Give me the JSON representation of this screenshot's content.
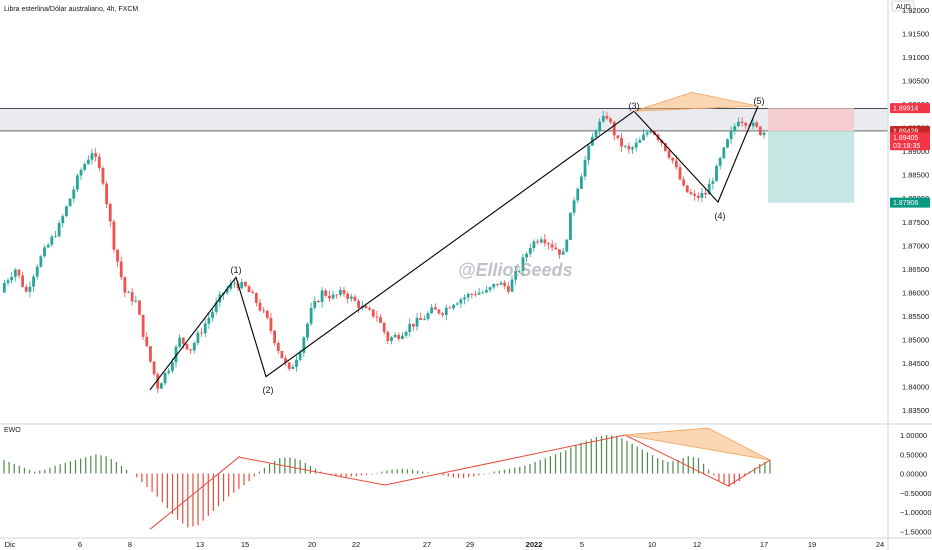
{
  "header": {
    "symbol_title": "Libra esterlina/Dólar australiano, 4h, FXCM",
    "currency": "AUD"
  },
  "indicator": {
    "name": "EWO"
  },
  "watermark": "@ElliotSeeds",
  "colors": {
    "up": "#26a69a",
    "down": "#ef5350",
    "ewo_up": "#4f8a4c",
    "ewo_down": "#e74c3c",
    "wave_line": "#000000",
    "triangle_fill": "#f7b574",
    "tp_zone": "#b2dfdb",
    "sl_zone": "#f6c9cc",
    "range_zone": "#e4e6ea",
    "price_green": "#089981",
    "price_red": "#f23645",
    "price_dark_red": "#c62828"
  },
  "price_tags": {
    "top": "1.89914",
    "middle": "1.89428",
    "current": "1.89405",
    "countdown": "03:18:35",
    "target": "1.87906"
  },
  "wave_labels": [
    "(1)",
    "(2)",
    "(3)",
    "(4)",
    "(5)"
  ],
  "chart_data": [
    {
      "type": "candlestick",
      "title": "Libra esterlina/Dólar australiano, 4h, FXCM",
      "x_tick_labels": [
        "Dic",
        "6",
        "8",
        "13",
        "15",
        "20",
        "22",
        "27",
        "29",
        "2022",
        "5",
        "10",
        "12",
        "17",
        "19",
        "24"
      ],
      "y_tick_labels": [
        "1.92000",
        "1.91500",
        "1.91000",
        "1.90500",
        "1.90000",
        "1.89500",
        "1.89000",
        "1.88500",
        "1.88000",
        "1.87500",
        "1.87000",
        "1.86500",
        "1.86000",
        "1.85500",
        "1.85000",
        "1.84500",
        "1.84000",
        "1.83500"
      ],
      "ylim": [
        1.832,
        1.921
      ],
      "resistance_zone": [
        1.8943,
        1.8991
      ],
      "elliott_wave_points": [
        {
          "label": "start",
          "price": 1.8393
        },
        {
          "label": "(1)",
          "price": 1.8632
        },
        {
          "label": "(2)",
          "price": 1.8421
        },
        {
          "label": "(3)",
          "price": 1.8985
        },
        {
          "label": "(4)",
          "price": 1.8792
        },
        {
          "label": "(5)",
          "price": 1.8996
        }
      ],
      "trade_setup": {
        "stop": 1.89914,
        "entry": 1.89428,
        "target": 1.87906
      },
      "approx_close_path": [
        1.862,
        1.865,
        1.86,
        1.866,
        1.87,
        1.874,
        1.88,
        1.886,
        1.89,
        1.884,
        1.87,
        1.86,
        1.858,
        1.848,
        1.84,
        1.844,
        1.85,
        1.848,
        1.852,
        1.856,
        1.86,
        1.862,
        1.861,
        1.858,
        1.854,
        1.848,
        1.843,
        1.848,
        1.856,
        1.86,
        1.859,
        1.86,
        1.858,
        1.856,
        1.855,
        1.85,
        1.851,
        1.853,
        1.854,
        1.856,
        1.856,
        1.858,
        1.859,
        1.86,
        1.86,
        1.862,
        1.861,
        1.865,
        1.87,
        1.872,
        1.87,
        1.868,
        1.88,
        1.888,
        1.895,
        1.8975,
        1.892,
        1.89,
        1.892,
        1.895,
        1.892,
        1.888,
        1.882,
        1.88,
        1.881,
        1.886,
        1.892,
        1.897,
        1.896,
        1.8941
      ]
    },
    {
      "type": "histogram",
      "title": "EWO",
      "y_tick_labels": [
        "1.00000",
        "0.50000",
        "0.00000",
        "−0.50000",
        "−1.00000",
        "−1.50000"
      ],
      "ylim": [
        -1.75,
        1.2
      ],
      "approx_values": [
        0.35,
        0.25,
        0.15,
        0.05,
        0.1,
        0.2,
        0.28,
        0.35,
        0.42,
        0.5,
        0.45,
        0.3,
        0.1,
        -0.1,
        -0.35,
        -0.6,
        -0.9,
        -1.2,
        -1.4,
        -1.35,
        -1.1,
        -0.85,
        -0.6,
        -0.4,
        -0.2,
        0.05,
        0.25,
        0.4,
        0.42,
        0.35,
        0.2,
        0.05,
        -0.05,
        -0.1,
        -0.08,
        -0.05,
        -0.02,
        0.05,
        0.1,
        0.12,
        0.1,
        0.05,
        0.0,
        -0.05,
        -0.1,
        -0.12,
        -0.08,
        -0.02,
        0.05,
        0.1,
        0.15,
        0.2,
        0.3,
        0.4,
        0.5,
        0.6,
        0.75,
        0.85,
        0.95,
        1.0,
        0.98,
        0.85,
        0.7,
        0.55,
        0.4,
        0.3,
        0.35,
        0.45,
        0.4,
        0.1,
        -0.2,
        -0.35,
        -0.2,
        0.05,
        0.25,
        0.35
      ],
      "divergence_lines": [
        {
          "from": -1.45,
          "to": 0.45
        },
        {
          "from": 0.42,
          "to": -0.3
        },
        {
          "from": -0.3,
          "to": 1.0
        },
        {
          "from": 1.0,
          "to": -0.32
        },
        {
          "from": -0.32,
          "to": 0.35
        }
      ]
    }
  ]
}
